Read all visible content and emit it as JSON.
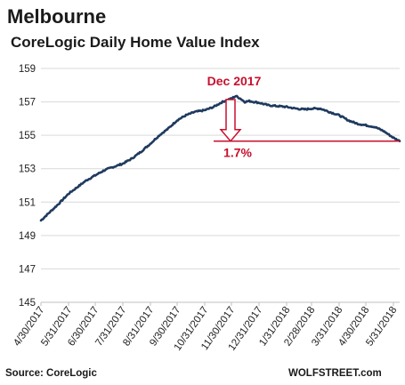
{
  "chart_data": {
    "type": "line",
    "title": "Melbourne",
    "subtitle": "CoreLogic Daily Home Value Index",
    "xlabel": "",
    "ylabel": "",
    "x_tick_labels": [
      "4/30/2017",
      "5/31/2017",
      "6/30/2017",
      "7/31/2017",
      "8/31/2017",
      "9/30/2017",
      "10/31/2017",
      "11/30/2017",
      "12/31/2017",
      "1/31/2018",
      "2/28/2018",
      "3/31/2018",
      "4/30/2018",
      "5/31/2018"
    ],
    "x_range": [
      "2017-04-30",
      "2018-06-07"
    ],
    "ylim": [
      145,
      159
    ],
    "y_ticks": [
      145,
      147,
      149,
      151,
      153,
      155,
      157,
      159
    ],
    "grid": "horizontal",
    "legend": "none",
    "series": [
      {
        "color": "#1f3a5f",
        "points": [
          [
            "2017-04-30",
            149.9
          ],
          [
            "2017-05-10",
            150.4
          ],
          [
            "2017-05-20",
            150.9
          ],
          [
            "2017-05-31",
            151.5
          ],
          [
            "2017-06-10",
            151.9
          ],
          [
            "2017-06-20",
            152.3
          ],
          [
            "2017-06-30",
            152.6
          ],
          [
            "2017-07-10",
            152.9
          ],
          [
            "2017-07-20",
            153.1
          ],
          [
            "2017-07-31",
            153.3
          ],
          [
            "2017-08-10",
            153.6
          ],
          [
            "2017-08-20",
            154.0
          ],
          [
            "2017-08-31",
            154.5
          ],
          [
            "2017-09-10",
            155.0
          ],
          [
            "2017-09-20",
            155.4
          ],
          [
            "2017-09-30",
            155.9
          ],
          [
            "2017-10-10",
            156.2
          ],
          [
            "2017-10-20",
            156.4
          ],
          [
            "2017-10-31",
            156.5
          ],
          [
            "2017-11-10",
            156.7
          ],
          [
            "2017-11-20",
            157.0
          ],
          [
            "2017-11-30",
            157.2
          ],
          [
            "2017-12-05",
            157.35
          ],
          [
            "2017-12-10",
            157.2
          ],
          [
            "2017-12-15",
            157.0
          ],
          [
            "2017-12-20",
            157.05
          ],
          [
            "2017-12-31",
            156.95
          ],
          [
            "2018-01-10",
            156.8
          ],
          [
            "2018-01-20",
            156.75
          ],
          [
            "2018-01-31",
            156.7
          ],
          [
            "2018-02-10",
            156.6
          ],
          [
            "2018-02-20",
            156.55
          ],
          [
            "2018-02-28",
            156.6
          ],
          [
            "2018-03-10",
            156.6
          ],
          [
            "2018-03-20",
            156.4
          ],
          [
            "2018-03-31",
            156.2
          ],
          [
            "2018-04-10",
            155.9
          ],
          [
            "2018-04-20",
            155.7
          ],
          [
            "2018-04-30",
            155.6
          ],
          [
            "2018-05-10",
            155.5
          ],
          [
            "2018-05-20",
            155.25
          ],
          [
            "2018-05-31",
            154.85
          ],
          [
            "2018-06-07",
            154.65
          ]
        ]
      }
    ],
    "annotations": [
      {
        "text": "Dec 2017",
        "color": "#c8102e"
      },
      {
        "text": "1.7%",
        "color": "#c8102e"
      }
    ]
  },
  "footer": {
    "source": "Source: CoreLogic",
    "brand": "WOLFSTREET.com"
  }
}
